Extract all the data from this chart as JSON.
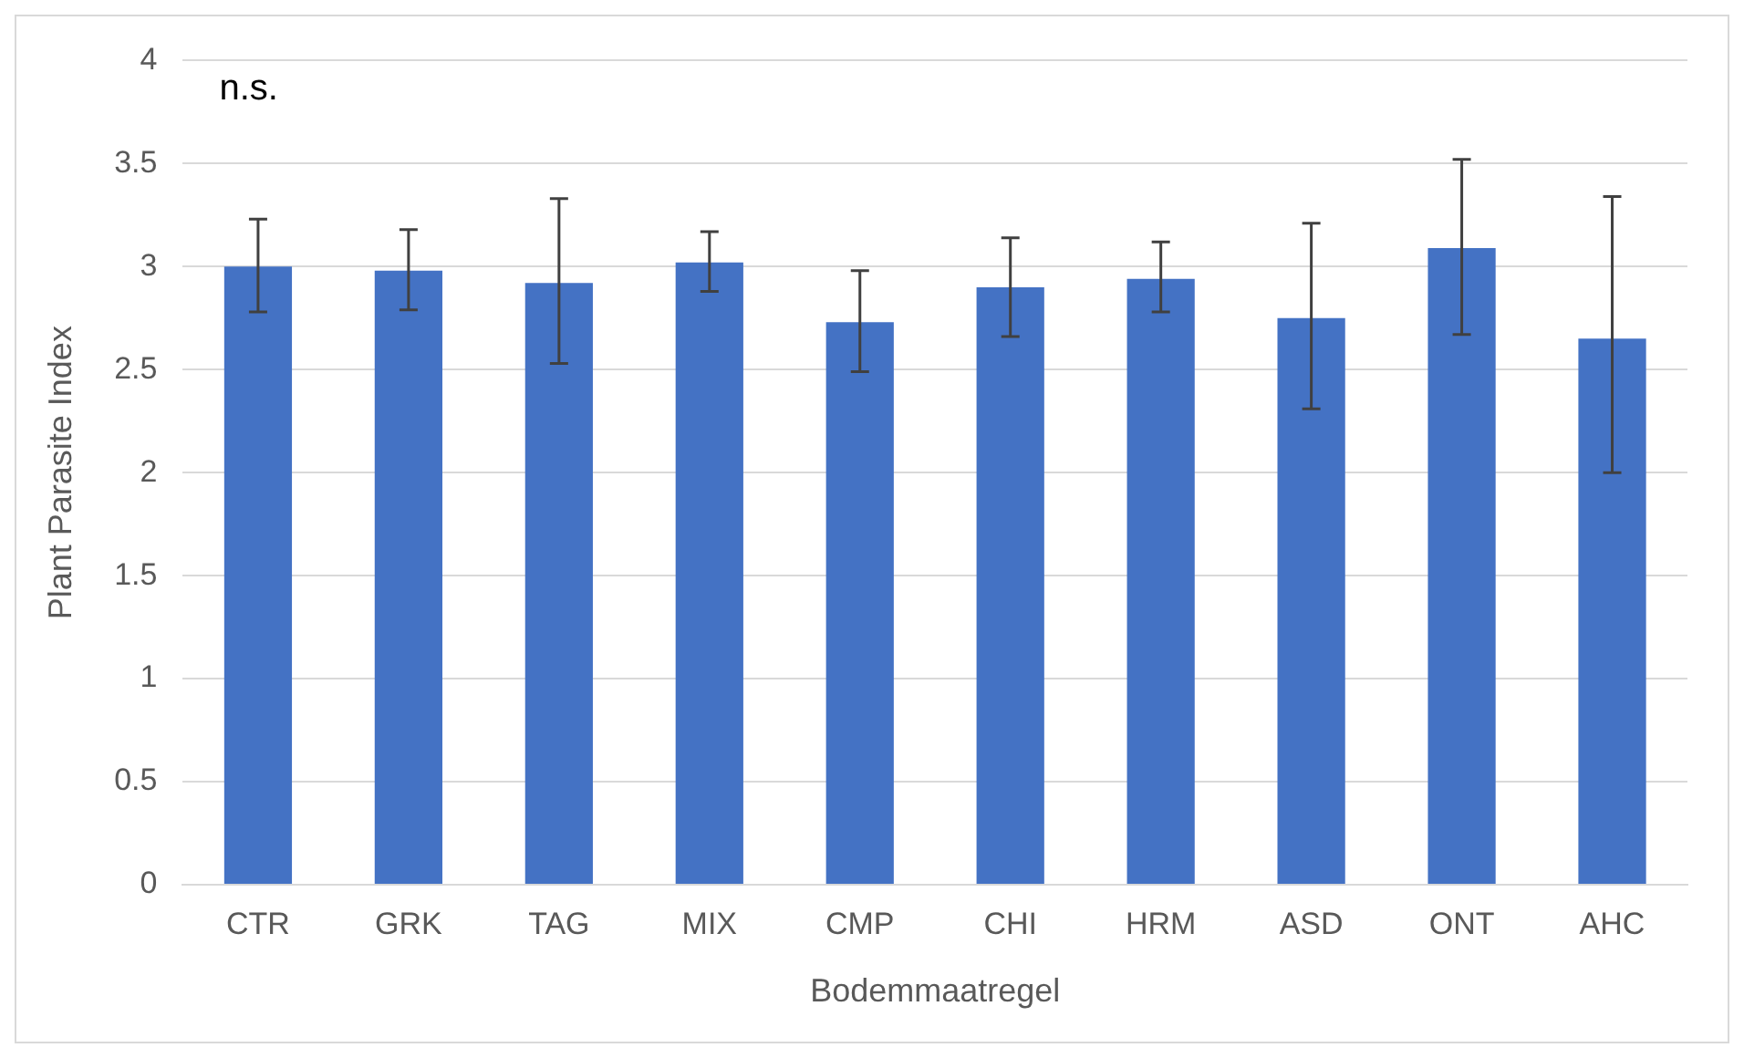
{
  "chart_data": {
    "type": "bar",
    "xlabel": "Bodemmaatregel",
    "ylabel": "Plant Parasite Index",
    "annotations": [
      "n.s."
    ],
    "categories": [
      "CTR",
      "GRK",
      "TAG",
      "MIX",
      "CMP",
      "CHI",
      "HRM",
      "ASD",
      "ONT",
      "AHC"
    ],
    "values": [
      3.0,
      2.98,
      2.92,
      3.02,
      2.73,
      2.9,
      2.94,
      2.75,
      3.09,
      2.65
    ],
    "errors": [
      [
        2.78,
        3.23
      ],
      [
        2.79,
        3.18
      ],
      [
        2.53,
        3.33
      ],
      [
        2.88,
        3.17
      ],
      [
        2.49,
        2.98
      ],
      [
        2.66,
        3.14
      ],
      [
        2.78,
        3.12
      ],
      [
        2.31,
        3.21
      ],
      [
        2.67,
        3.52
      ],
      [
        2.0,
        3.34
      ]
    ],
    "color": "#4472c4",
    "ylim": [
      0,
      4
    ],
    "yticks": [
      0,
      0.5,
      1,
      1.5,
      2,
      2.5,
      3,
      3.5,
      4
    ],
    "grid": "y",
    "legend": false
  }
}
